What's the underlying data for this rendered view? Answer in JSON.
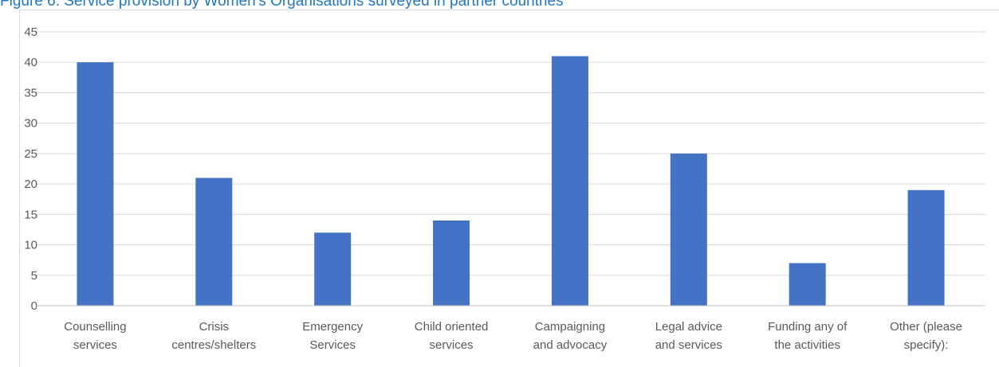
{
  "caption": "Figure 6: Service provision by Women's Organisations surveyed in partner countries",
  "chart_data": {
    "type": "bar",
    "title": "",
    "xlabel": "",
    "ylabel": "",
    "categories": [
      [
        "Counselling",
        "services"
      ],
      [
        "Crisis",
        "centres/shelters"
      ],
      [
        "Emergency",
        "Services"
      ],
      [
        "Child oriented",
        "services"
      ],
      [
        "Campaigning",
        "and advocacy"
      ],
      [
        "Legal advice",
        "and services"
      ],
      [
        "Funding any of",
        "the activities"
      ],
      [
        "Other (please",
        "specify):"
      ]
    ],
    "values": [
      40,
      21,
      12,
      14,
      41,
      25,
      7,
      19
    ],
    "ylim": [
      0,
      45
    ],
    "yticks": [
      0,
      5,
      10,
      15,
      20,
      25,
      30,
      35,
      40,
      45
    ],
    "grid": true,
    "legend": "none",
    "bar_color": "#4472c4",
    "grid_color": "#d9d9d9",
    "axis_color": "#bfbfbf"
  }
}
